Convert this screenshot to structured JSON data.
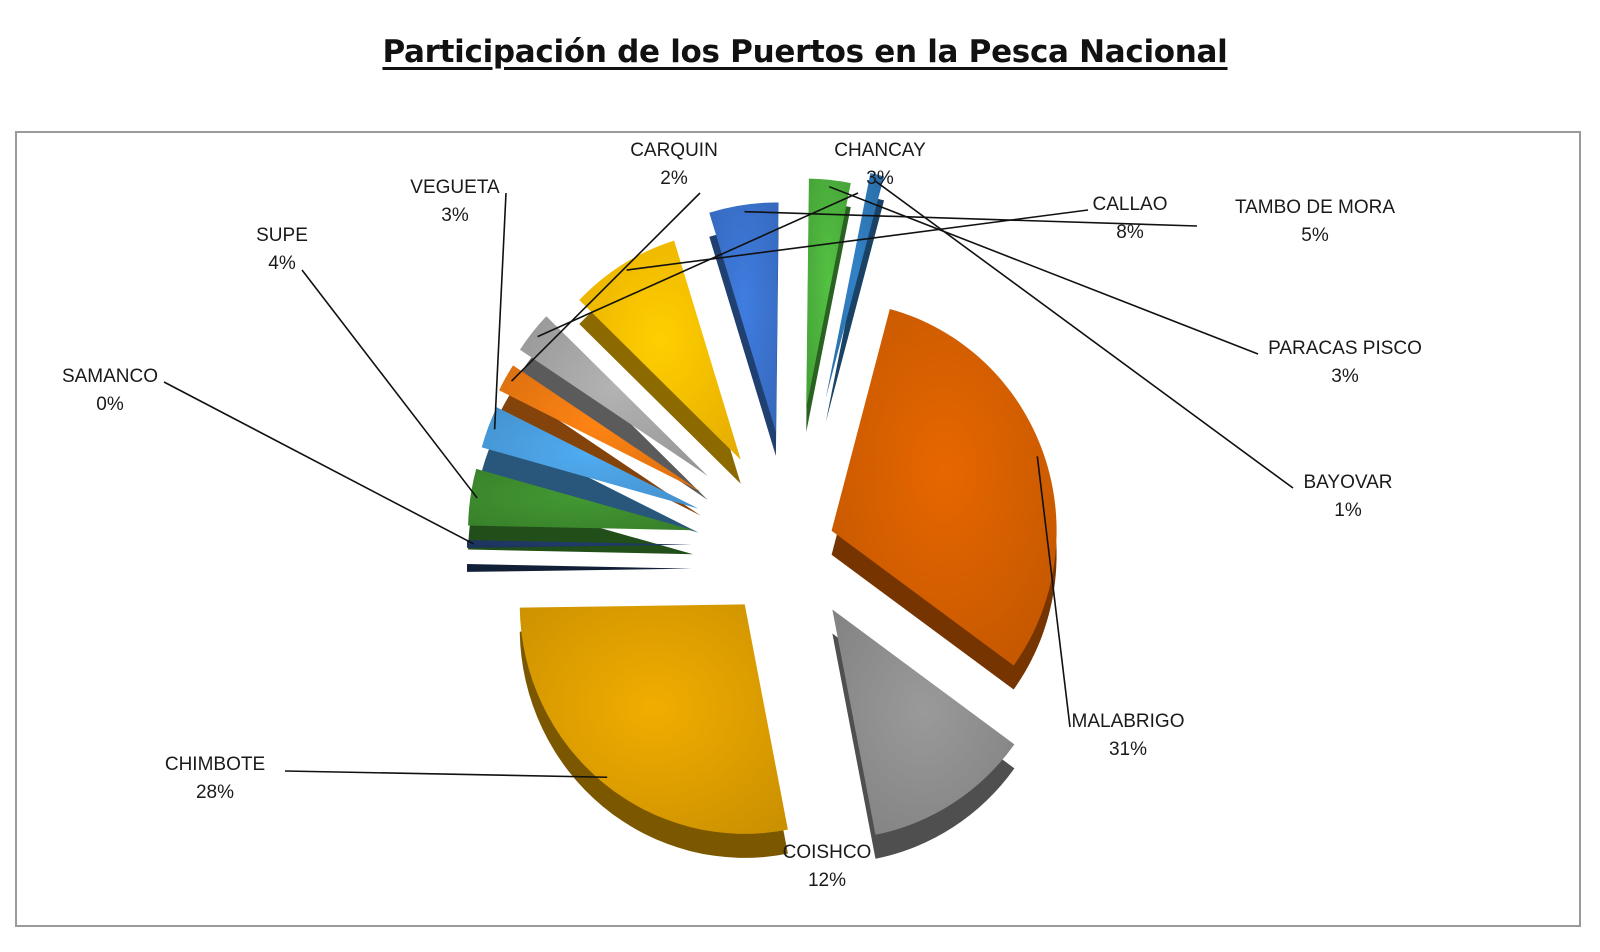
{
  "title": "Participación de los Puertos en la Pesca Nacional",
  "chart_data": {
    "type": "pie",
    "title": "Participación de los Puertos en la Pesca Nacional",
    "slices": [
      {
        "name": "MALABRIGO",
        "value": 31,
        "label": "31%",
        "color": "#D65F00"
      },
      {
        "name": "COISHCO",
        "value": 12,
        "label": "12%",
        "color": "#8F8F8F"
      },
      {
        "name": "CHIMBOTE",
        "value": 28,
        "label": "28%",
        "color": "#E0A000"
      },
      {
        "name": "SAMANCO",
        "value": 0,
        "label": "0%",
        "color": "#1F3864"
      },
      {
        "name": "SUPE",
        "value": 4,
        "label": "4%",
        "color": "#3E8E2F"
      },
      {
        "name": "VEGUETA",
        "value": 3,
        "label": "3%",
        "color": "#4A9FE0"
      },
      {
        "name": "CARQUIN",
        "value": 2,
        "label": "2%",
        "color": "#F07A12"
      },
      {
        "name": "CHANCAY",
        "value": 3,
        "label": "3%",
        "color": "#A6A6A6"
      },
      {
        "name": "CALLAO",
        "value": 8,
        "label": "8%",
        "color": "#FFC000"
      },
      {
        "name": "TAMBO DE MORA",
        "value": 5,
        "label": "5%",
        "color": "#3B74D0"
      },
      {
        "name": "PARACAS PISCO",
        "value": 3,
        "label": "3%",
        "color": "#4DB33D"
      },
      {
        "name": "BAYOVAR",
        "value": 1,
        "label": "1%",
        "color": "#2E78B8"
      }
    ]
  }
}
